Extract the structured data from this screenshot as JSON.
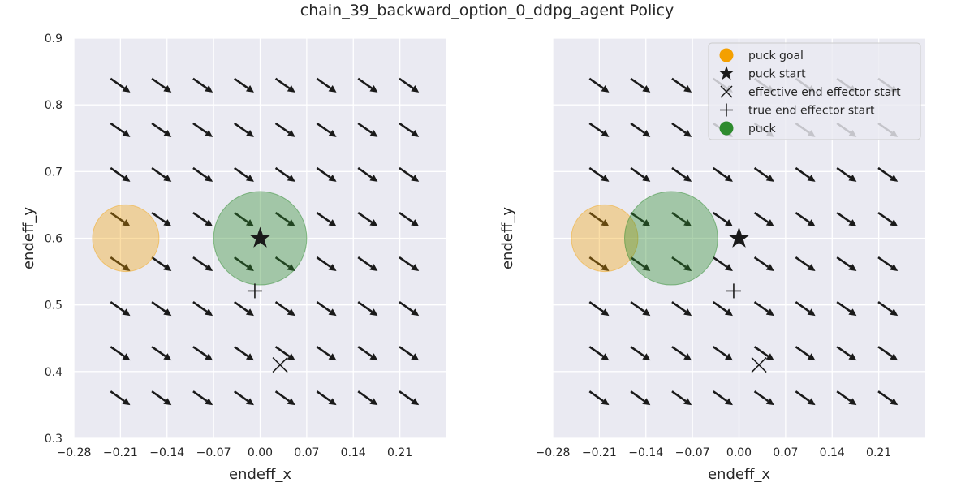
{
  "figure": {
    "suptitle": "chain_39_backward_option_0_ddpg_agent Policy"
  },
  "colors": {
    "axes_bg": "#eaeaf2",
    "grid": "#ffffff",
    "arrow": "#1a1a1a",
    "arrow_faded": "#b4b4b8",
    "goal": "#f4a000",
    "puck": "#2e8b2e",
    "marker": "#1a1a1a"
  },
  "chart_data": [
    {
      "type": "scatter",
      "subtype": "quiver",
      "title": "",
      "xlabel": "endeff_x",
      "ylabel": "endeff_y",
      "xlim": [
        -0.28,
        0.28
      ],
      "ylim": [
        0.3,
        0.9
      ],
      "xticks": [
        "−0.28",
        "−0.21",
        "−0.14",
        "−0.07",
        "0.00",
        "0.07",
        "0.14",
        "0.21"
      ],
      "yticks": [
        "0.3",
        "0.4",
        "0.5",
        "0.6",
        "0.7",
        "0.8",
        "0.9"
      ],
      "yticks_shown": true,
      "grid": true,
      "legend": false,
      "quiver": {
        "x": [
          -0.21,
          -0.148,
          -0.086,
          -0.024,
          0.038,
          0.1,
          0.162,
          0.224
        ],
        "y": [
          0.36,
          0.427,
          0.494,
          0.561,
          0.628,
          0.695,
          0.762,
          0.829
        ],
        "direction": [
          1,
          -0.7
        ]
      },
      "puck_goal": {
        "x": -0.202,
        "y": 0.6,
        "radius": 0.05
      },
      "puck_start": {
        "x": 0.0,
        "y": 0.6
      },
      "effective_end_effector_start": {
        "x": 0.03,
        "y": 0.41
      },
      "true_end_effector_start": {
        "x": -0.008,
        "y": 0.521
      },
      "puck": {
        "x": 0.0,
        "y": 0.6,
        "radius": 0.07
      }
    },
    {
      "type": "scatter",
      "subtype": "quiver",
      "title": "",
      "xlabel": "endeff_x",
      "ylabel": "endeff_y",
      "xlim": [
        -0.28,
        0.28
      ],
      "ylim": [
        0.3,
        0.9
      ],
      "xticks": [
        "−0.28",
        "−0.21",
        "−0.14",
        "−0.07",
        "0.00",
        "0.07",
        "0.14",
        "0.21"
      ],
      "yticks": [],
      "yticks_shown": false,
      "grid": true,
      "legend": true,
      "legend_position": "top-right",
      "quiver": {
        "x": [
          -0.21,
          -0.148,
          -0.086,
          -0.024,
          0.038,
          0.1,
          0.162,
          0.224
        ],
        "y": [
          0.36,
          0.427,
          0.494,
          0.561,
          0.628,
          0.695,
          0.762,
          0.829
        ],
        "direction": [
          1,
          -0.7
        ]
      },
      "puck_goal": {
        "x": -0.202,
        "y": 0.6,
        "radius": 0.05
      },
      "puck_start": {
        "x": 0.0,
        "y": 0.6
      },
      "effective_end_effector_start": {
        "x": 0.03,
        "y": 0.41
      },
      "true_end_effector_start": {
        "x": -0.008,
        "y": 0.521
      },
      "puck": {
        "x": -0.102,
        "y": 0.6,
        "radius": 0.07
      }
    }
  ],
  "legend": {
    "entries": [
      {
        "label": "puck goal",
        "marker": "circle",
        "color": "#f4a000"
      },
      {
        "label": "puck start",
        "marker": "star",
        "color": "#1a1a1a"
      },
      {
        "label": "effective end effector start",
        "marker": "x",
        "color": "#1a1a1a"
      },
      {
        "label": "true end effector start",
        "marker": "plus",
        "color": "#1a1a1a"
      },
      {
        "label": "puck",
        "marker": "circle",
        "color": "#2e8b2e"
      }
    ]
  }
}
